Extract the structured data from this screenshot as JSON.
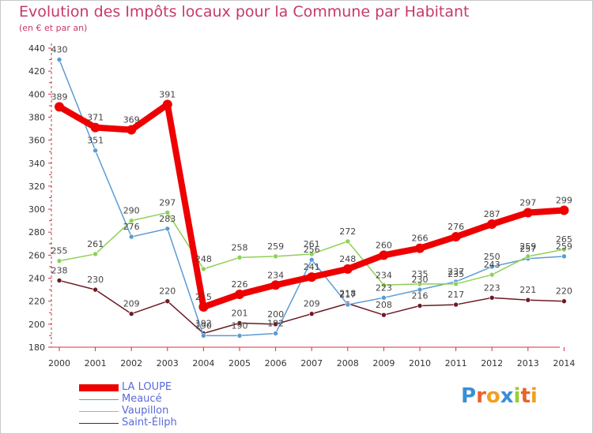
{
  "header": {
    "title": "Evolution des Impôts locaux pour la Commune par Habitant",
    "subtitle": "(en € et par an)"
  },
  "chart_data": {
    "type": "line",
    "title": "Evolution des Impôts locaux pour la Commune par Habitant",
    "subtitle": "(en € et par an)",
    "xlabel": "",
    "ylabel": "",
    "ylim": [
      180,
      440
    ],
    "ytick_step": 20,
    "grid": false,
    "legend_position": "bottom-left",
    "categories": [
      "2000",
      "2001",
      "2002",
      "2003",
      "2004",
      "2005",
      "2006",
      "2007",
      "2008",
      "2009",
      "2010",
      "2011",
      "2012",
      "2013",
      "2014"
    ],
    "series": [
      {
        "name": "Saint-Éliph",
        "color": "#6b1a24",
        "values": [
          238,
          230,
          209,
          220,
          192,
          201,
          200,
          209,
          218,
          208,
          216,
          217,
          223,
          221,
          220
        ]
      },
      {
        "name": "Meaucé",
        "color": "#5b9bd5",
        "values": [
          430,
          351,
          276,
          283,
          190,
          190,
          192,
          256,
          217,
          223,
          230,
          237,
          250,
          257,
          259
        ]
      },
      {
        "name": "Vaupillon",
        "color": "#8ed155",
        "values": [
          255,
          261,
          290,
          297,
          248,
          258,
          259,
          261,
          272,
          234,
          235,
          235,
          243,
          259,
          265
        ]
      },
      {
        "name": "LA LOUPE",
        "color": "#ee0000",
        "values": [
          389,
          371,
          369,
          391,
          215,
          226,
          234,
          241,
          248,
          260,
          266,
          276,
          287,
          297,
          299
        ]
      }
    ]
  },
  "legend": {
    "items": [
      {
        "label": "LA LOUPE",
        "color": "#ee0000"
      },
      {
        "label": "Meaucé",
        "color": "#5b9bd5"
      },
      {
        "label": "Vaupillon",
        "color": "#8ed155"
      },
      {
        "label": "Saint-Éliph",
        "color": "#6b1a24"
      }
    ]
  },
  "logo": {
    "letters": [
      "P",
      "r",
      "o",
      "x",
      "i",
      "t",
      "i"
    ],
    "colors": [
      "#3a8fd6",
      "#e8622a",
      "#f0a020",
      "#3a8fd6",
      "#9acd32",
      "#e8622a",
      "#f0a020"
    ]
  }
}
